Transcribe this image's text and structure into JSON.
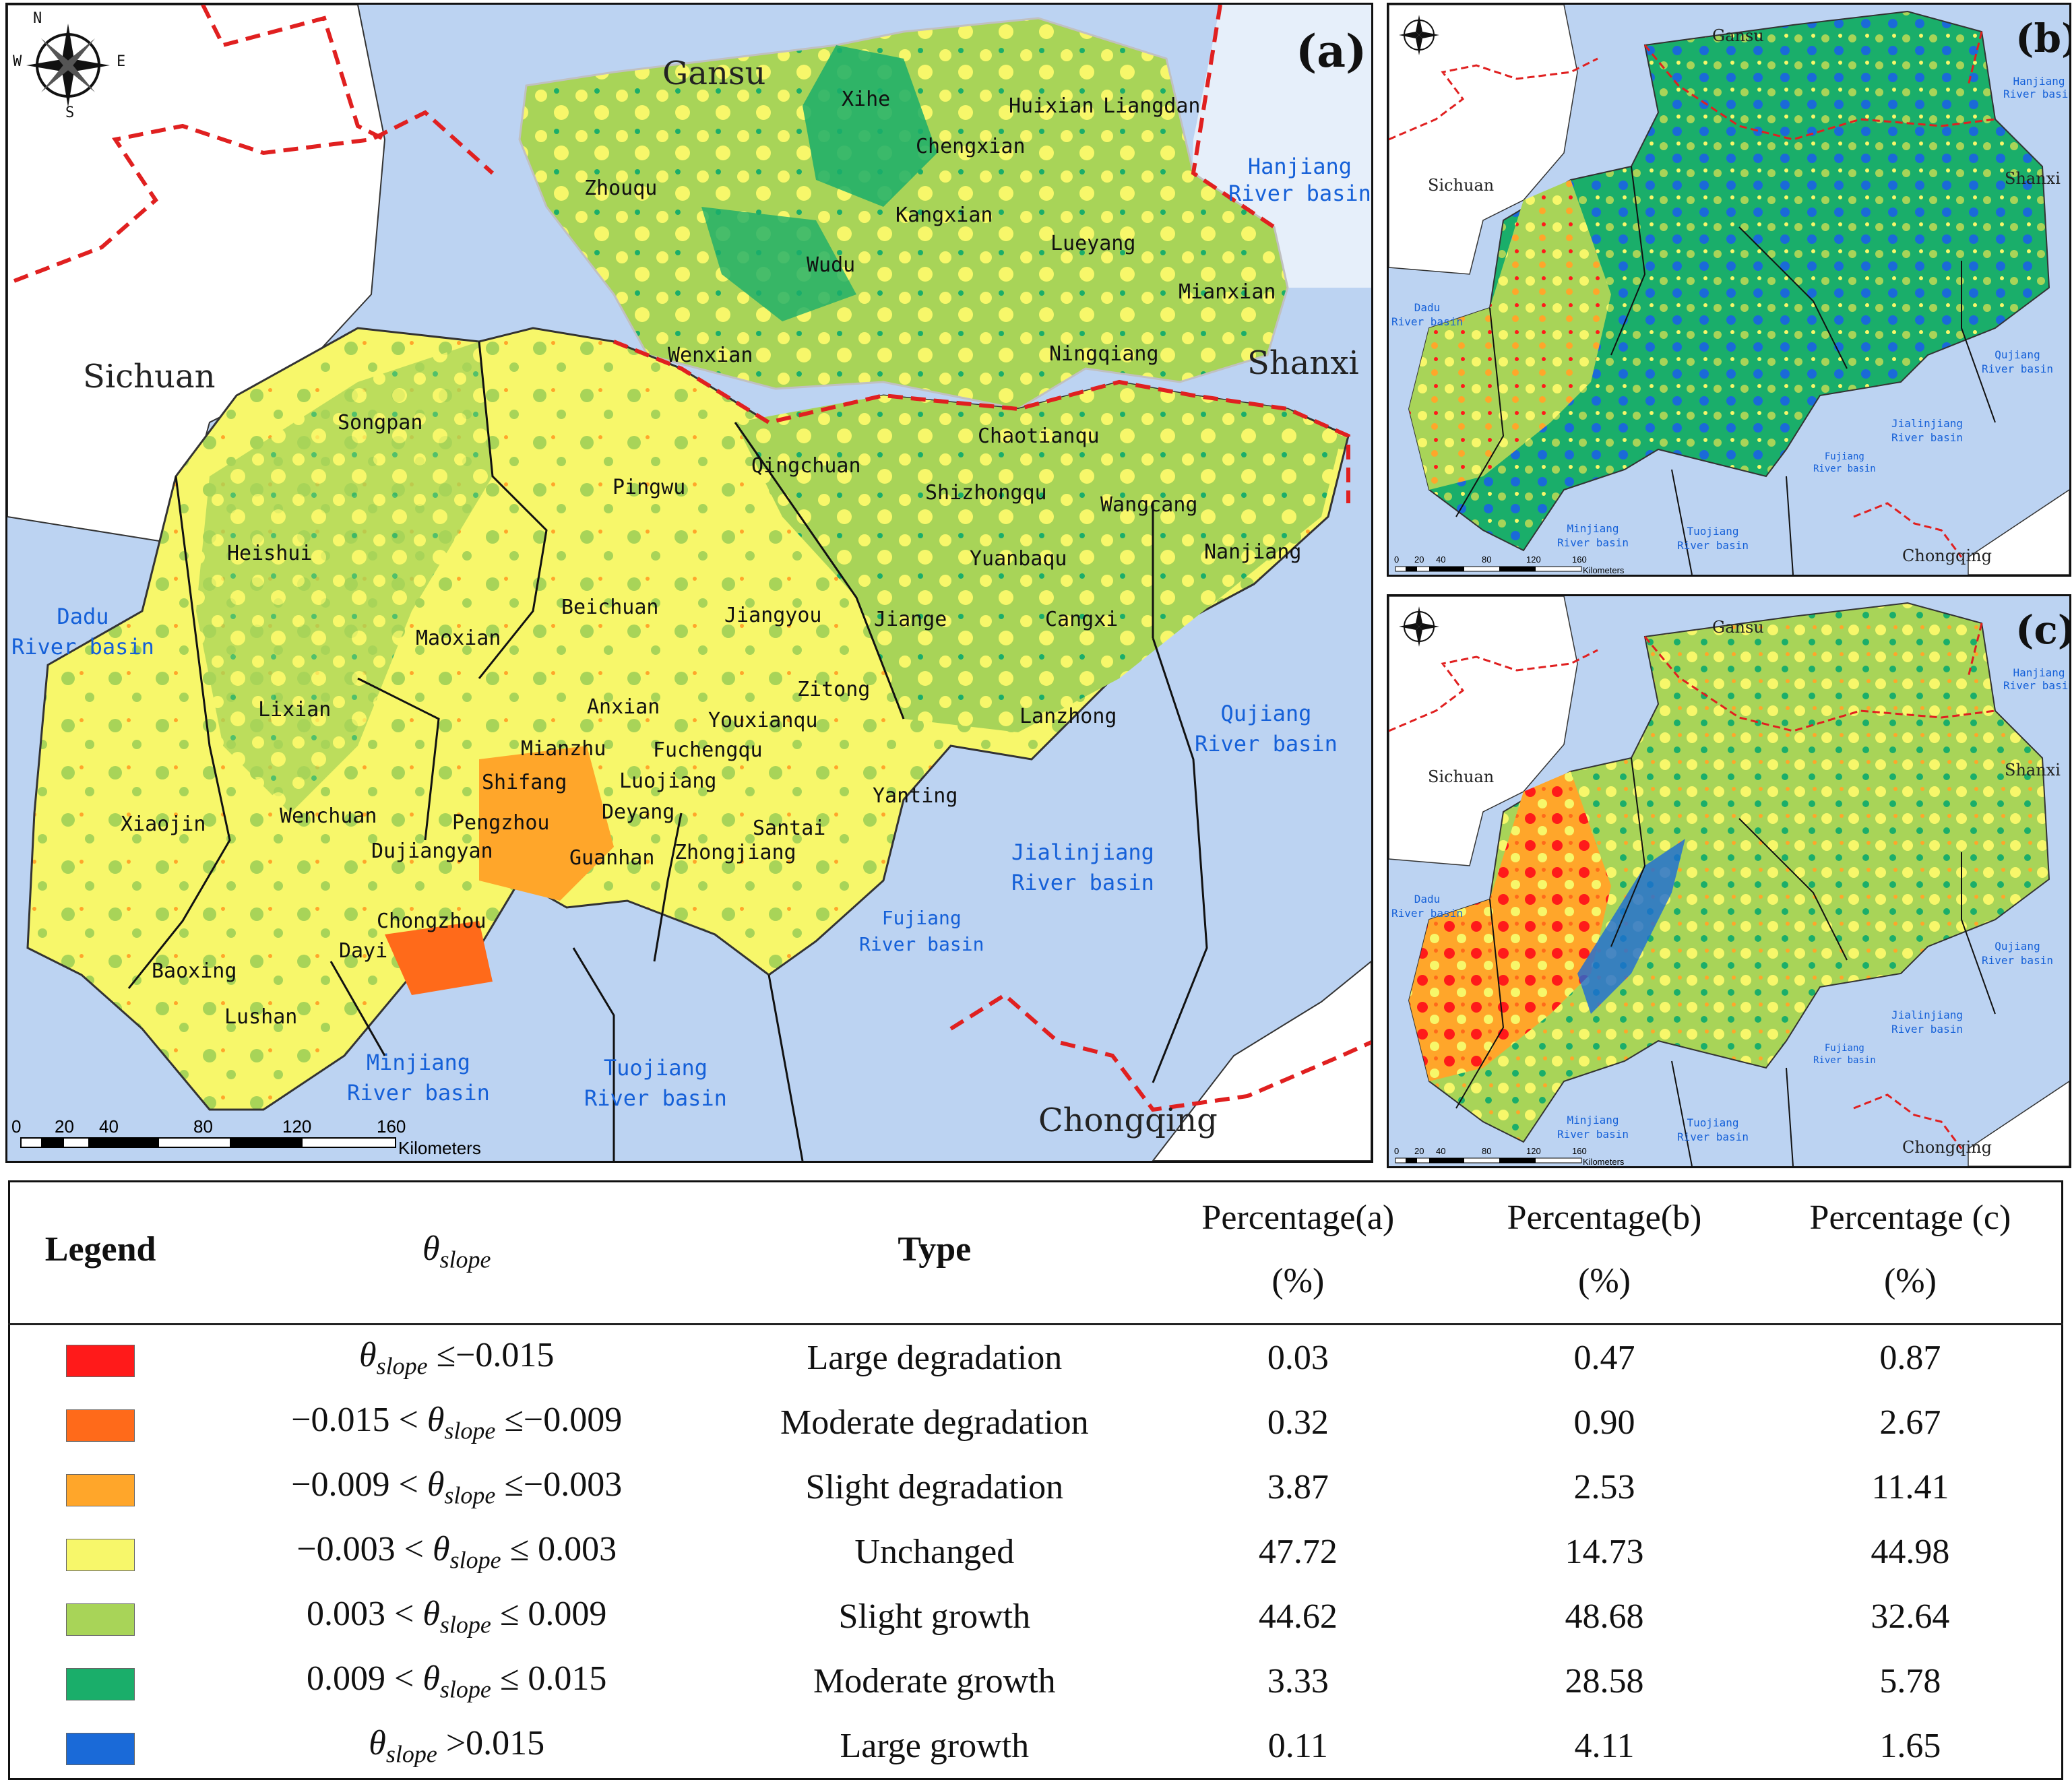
{
  "panel_a": {
    "label": "(a)",
    "provinces": {
      "gansu": "Gansu",
      "sichuan": "Sichuan",
      "shanxi": "Shanxi",
      "chongqing": "Chongqing"
    },
    "basins": {
      "hanjiang": "Hanjiang\nRiver basin",
      "dadu": "Dadu\nRiver basin",
      "qujiang": "Qujiang\nRiver basin",
      "jialinjiang": "Jialinjiang\nRiver basin",
      "fujiang": "Fujiang\nRiver basin",
      "minjiang": "Minjiang\nRiver basin",
      "tuojiang": "Tuojiang\nRiver basin"
    },
    "counties": [
      "Xihe",
      "Huixian",
      "Liangdan",
      "Chengxian",
      "Zhouqu",
      "Kangxian",
      "Lueyang",
      "Wudu",
      "Mianxian",
      "Wenxian",
      "Ningqiang",
      "Songpan",
      "Chaotianqu",
      "Qingchuan",
      "Pingwu",
      "Shizhongqu",
      "Wangcang",
      "Heishui",
      "Yuanbaqu",
      "Nanjiang",
      "Beichuan",
      "Jiangyou",
      "Jiange",
      "Cangxi",
      "Maoxian",
      "Zitong",
      "Anxian",
      "Youxianqu",
      "Lixian",
      "Fuchengqu",
      "Lanzhong",
      "Mianzhu",
      "Shifang",
      "Luojiang",
      "Xiaojin",
      "Wenchuan",
      "Pengzhou",
      "Deyang",
      "Santai",
      "Yanting",
      "Dujiangyan",
      "Guanhan",
      "Zhongjiang",
      "Chongzhou",
      "Dayi",
      "Baoxing",
      "Lushan"
    ],
    "compass": {
      "n": "N",
      "s": "S",
      "e": "E",
      "w": "W"
    },
    "scale": {
      "ticks": [
        "0",
        "20",
        "40",
        "80",
        "120",
        "160"
      ],
      "unit": "Kilometers"
    }
  },
  "panel_b": {
    "label": "(b)",
    "provinces": {
      "gansu": "Gansu",
      "sichuan": "Sichuan",
      "shanxi": "Shanxi",
      "chongqing": "Chongqing"
    },
    "basins": {
      "hanjiang": "Hanjiang\nRiver basin",
      "dadu": "Dadu\nRiver basin",
      "qujiang": "Qujiang\nRiver basin",
      "jialinjiang": "Jialinjiang\nRiver basin",
      "fujiang": "Fujiang\nRiver basin",
      "minjiang": "Minjiang\nRiver basin",
      "tuojiang": "Tuojiang\nRiver basin"
    },
    "scale": {
      "ticks": [
        "0",
        "20",
        "40",
        "80",
        "120",
        "160"
      ],
      "unit": "Kilometers"
    }
  },
  "panel_c": {
    "label": "(c)",
    "provinces": {
      "gansu": "Gansu",
      "sichuan": "Sichuan",
      "shanxi": "Shanxi",
      "chongqing": "Chongqing"
    },
    "basins": {
      "hanjiang": "Hanjiang\nRiver basin",
      "dadu": "Dadu\nRiver basin",
      "qujiang": "Qujiang\nRiver basin",
      "jialinjiang": "Jialinjiang\nRiver basin",
      "fujiang": "Fujiang\nRiver basin",
      "minjiang": "Minjiang\nRiver basin",
      "tuojiang": "Tuojiang\nRiver basin"
    },
    "scale": {
      "ticks": [
        "0",
        "20",
        "40",
        "80",
        "120",
        "160"
      ],
      "unit": "Kilometers"
    }
  },
  "legend_table": {
    "headers": {
      "legend": "Legend",
      "theta_symbol": "θ",
      "theta_sub": "slope",
      "type": "Type",
      "pa_1": "Percentage(a)",
      "pa_2": "(%)",
      "pb_1": "Percentage(b)",
      "pb_2": "(%)",
      "pc_1": "Percentage (c)",
      "pc_2": "(%)"
    },
    "rows": [
      {
        "color": "#ff1a1a",
        "pre": "",
        "post": " ≤−0.015",
        "type": "Large degradation",
        "a": "0.03",
        "b": "0.47",
        "c": "0.87"
      },
      {
        "color": "#ff6a1a",
        "pre": "−0.015 < ",
        "post": " ≤−0.009",
        "type": "Moderate degradation",
        "a": "0.32",
        "b": "0.90",
        "c": "2.67"
      },
      {
        "color": "#ffa62a",
        "pre": "−0.009 < ",
        "post": " ≤−0.003",
        "type": "Slight degradation",
        "a": "3.87",
        "b": "2.53",
        "c": "11.41"
      },
      {
        "color": "#f7f76a",
        "pre": "−0.003 < ",
        "post": " ≤ 0.003",
        "type": "Unchanged",
        "a": "47.72",
        "b": "14.73",
        "c": "44.98"
      },
      {
        "color": "#a8d458",
        "pre": "0.003 < ",
        "post": " ≤ 0.009",
        "type": "Slight growth",
        "a": "44.62",
        "b": "48.68",
        "c": "32.64"
      },
      {
        "color": "#1aae6a",
        "pre": "0.009 < ",
        "post": " ≤ 0.015",
        "type": "Moderate growth",
        "a": "3.33",
        "b": "28.58",
        "c": "5.78"
      },
      {
        "color": "#1a6ad8",
        "pre": "",
        "post": " >0.015",
        "type": "Large growth",
        "a": "0.11",
        "b": "4.11",
        "c": "1.65"
      }
    ]
  },
  "colors": {
    "water": "#bcd3f2",
    "land_outside": "#ffffff",
    "unchanged": "#f7f76a",
    "slight_growth": "#a8d458",
    "moderate_growth": "#1aae6a",
    "large_growth": "#1a6ad8",
    "province_border": "#e02020"
  }
}
